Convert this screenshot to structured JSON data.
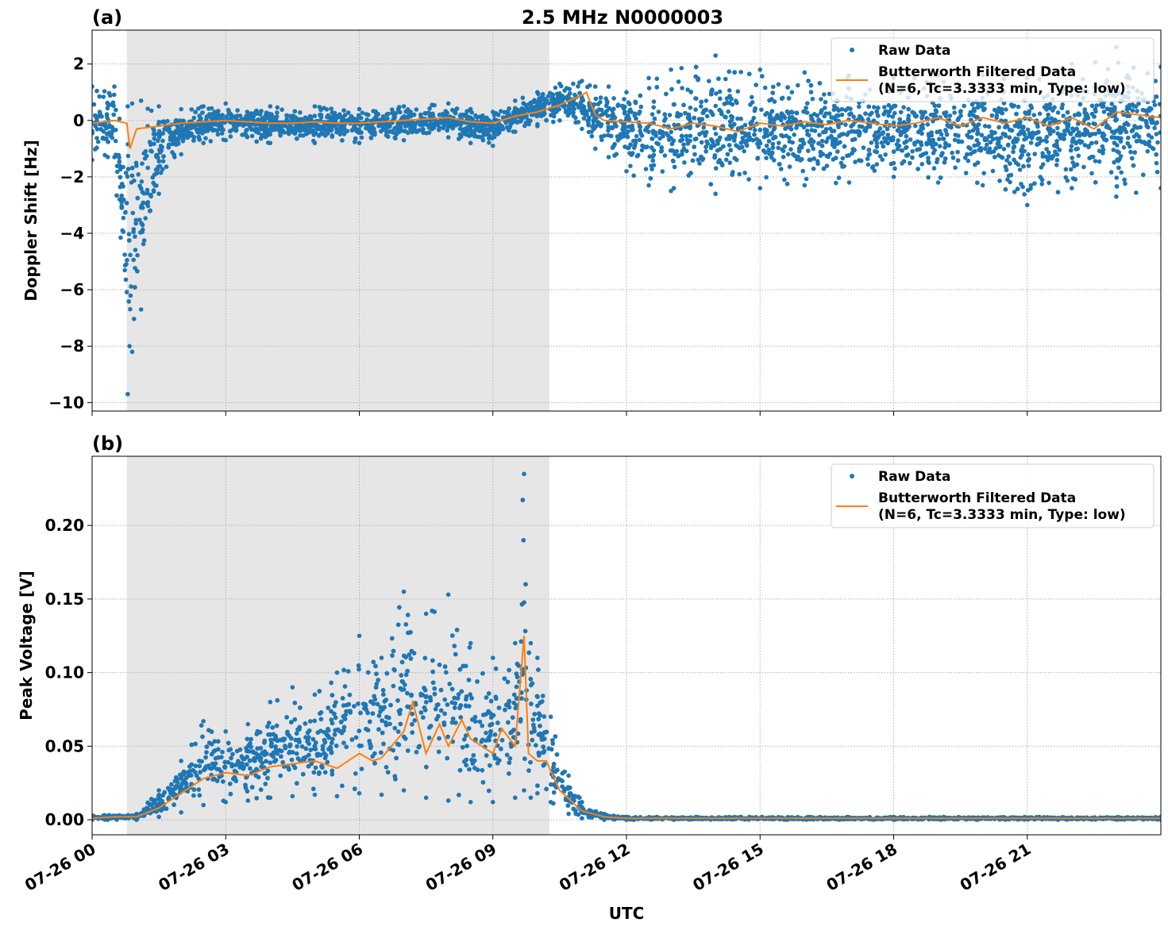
{
  "figure_title": "2.5 MHz N0000003",
  "chart_data": [
    {
      "type": "scatter+line",
      "panel_label": "(a)",
      "ylabel": "Doppler Shift [Hz]",
      "xlabel": "",
      "xlim_hours_utc": [
        0,
        24
      ],
      "ylim": [
        -10.3,
        3.2
      ],
      "yticks": [
        2,
        0,
        -2,
        -4,
        -6,
        -8,
        -10
      ],
      "ytick_labels": [
        "2",
        "0",
        "−2",
        "−4",
        "−6",
        "−8",
        "−10"
      ],
      "grid": true,
      "legend_position": "upper-right",
      "shaded_interval_hours": [
        0.78,
        10.27
      ],
      "series": [
        {
          "name": "Raw Data",
          "kind": "scatter",
          "color": "#1f77b4",
          "envelope": {
            "x": [
              0,
              0.5,
              0.8,
              0.9,
              1.1,
              1.5,
              2,
              2.5,
              3,
              4,
              5,
              6,
              7,
              8,
              8.5,
              9,
              9.5,
              10,
              10.5,
              11,
              11.3,
              11.6,
              12,
              12.5,
              13,
              14,
              15,
              16,
              17,
              18,
              19,
              20,
              21,
              22,
              23,
              24
            ],
            "min": [
              -1.4,
              -1.3,
              -9.7,
              -8.2,
              -6.7,
              -2.6,
              -1.2,
              -0.8,
              -0.7,
              -0.8,
              -0.8,
              -0.8,
              -0.7,
              -0.6,
              -0.8,
              -0.9,
              -0.4,
              -0.2,
              0,
              -0.3,
              -1.0,
              -1.3,
              -1.8,
              -2.3,
              -2.5,
              -2.6,
              -2.4,
              -2.3,
              -2.2,
              -2.0,
              -2.2,
              -2.3,
              -3.0,
              -2.4,
              -2.7,
              -2.4
            ],
            "max": [
              1.2,
              1.2,
              0.5,
              0.6,
              0.7,
              0.5,
              0.4,
              0.5,
              0.6,
              0.5,
              0.5,
              0.4,
              0.5,
              0.6,
              0.4,
              0.3,
              0.7,
              1.0,
              1.3,
              1.4,
              1.2,
              1.2,
              1.0,
              1.5,
              1.8,
              2.3,
              1.8,
              1.7,
              1.6,
              1.5,
              1.6,
              1.6,
              1.5,
              2.0,
              2.6,
              1.9
            ]
          }
        },
        {
          "name": "Butterworth Filtered Data\n(N=6, Tc=3.3333 min, Type: low)",
          "kind": "line",
          "color": "#ff7f0e",
          "x": [
            0,
            0.5,
            0.78,
            0.85,
            1,
            1.5,
            2,
            2.5,
            3,
            3.5,
            4,
            4.5,
            5,
            5.5,
            6,
            6.5,
            7,
            7.5,
            8,
            8.5,
            9,
            9.5,
            10,
            10.5,
            11,
            11.1,
            11.3,
            11.5,
            12,
            12.5,
            13,
            13.5,
            14,
            14.5,
            15,
            15.5,
            16,
            16.5,
            17,
            17.5,
            18,
            18.5,
            19,
            19.5,
            20,
            20.5,
            21,
            21.5,
            22,
            22.5,
            23,
            23.5,
            24
          ],
          "y": [
            -0.1,
            0,
            -0.1,
            -1.0,
            -0.3,
            -0.2,
            -0.1,
            -0.05,
            0,
            -0.05,
            -0.1,
            -0.1,
            -0.05,
            -0.1,
            -0.1,
            -0.05,
            0,
            0.05,
            0.1,
            -0.05,
            -0.1,
            0.15,
            0.3,
            0.55,
            0.9,
            1.0,
            0.2,
            0,
            -0.05,
            -0.1,
            -0.3,
            -0.1,
            -0.2,
            -0.4,
            -0.1,
            -0.2,
            -0.05,
            -0.15,
            0,
            -0.1,
            -0.2,
            -0.1,
            0.1,
            -0.2,
            0.1,
            -0.1,
            0.1,
            -0.2,
            0.1,
            -0.3,
            0.3,
            0.2,
            0.1
          ]
        }
      ]
    },
    {
      "type": "scatter+line",
      "panel_label": "(b)",
      "ylabel": "Peak Voltage [V]",
      "xlabel": "UTC",
      "xlim_hours_utc": [
        0,
        24
      ],
      "xticks": [
        0,
        3,
        6,
        9,
        12,
        15,
        18,
        21
      ],
      "xtick_labels": [
        "07-26 00",
        "07-26 03",
        "07-26 06",
        "07-26 09",
        "07-26 12",
        "07-26 15",
        "07-26 18",
        "07-26 21"
      ],
      "ylim": [
        -0.0102,
        0.247
      ],
      "yticks": [
        0,
        0.05,
        0.1,
        0.15,
        0.2
      ],
      "ytick_labels": [
        "0.00",
        "0.05",
        "0.10",
        "0.15",
        "0.20"
      ],
      "grid": true,
      "legend_position": "upper-right",
      "shaded_interval_hours": [
        0.78,
        10.27
      ],
      "series": [
        {
          "name": "Raw Data",
          "kind": "scatter",
          "color": "#1f77b4",
          "envelope": {
            "x": [
              0,
              1,
              1.5,
              2,
              2.5,
              3,
              3.5,
              4,
              4.5,
              5,
              5.5,
              6,
              6.5,
              7,
              7.5,
              8,
              8.5,
              9,
              9.5,
              9.7,
              9.85,
              10,
              10.3,
              10.7,
              11,
              11.5,
              12,
              18,
              24
            ],
            "min": [
              0,
              0,
              0.002,
              0.005,
              0.01,
              0.012,
              0.013,
              0.015,
              0.016,
              0.017,
              0.016,
              0.018,
              0.017,
              0.02,
              0.015,
              0.013,
              0.012,
              0.012,
              0.015,
              0.02,
              0.015,
              0.018,
              0.012,
              0.004,
              0.001,
              0,
              0,
              0,
              0
            ],
            "max": [
              0.003,
              0.004,
              0.02,
              0.04,
              0.067,
              0.06,
              0.065,
              0.08,
              0.09,
              0.085,
              0.1,
              0.125,
              0.11,
              0.155,
              0.14,
              0.153,
              0.12,
              0.11,
              0.12,
              0.235,
              0.12,
              0.11,
              0.07,
              0.03,
              0.012,
              0.004,
              0.002,
              0.002,
              0.002
            ]
          }
        },
        {
          "name": "Butterworth Filtered Data\n(N=6, Tc=3.3333 min, Type: low)",
          "kind": "line",
          "color": "#ff7f0e",
          "x": [
            0,
            0.5,
            1,
            1.5,
            2,
            2.5,
            3,
            3.5,
            4,
            4.5,
            5,
            5.5,
            6,
            6.3,
            6.5,
            7,
            7.2,
            7.5,
            7.8,
            8,
            8.3,
            8.5,
            9,
            9.2,
            9.5,
            9.7,
            9.8,
            10,
            10.2,
            10.5,
            11,
            11.5,
            12,
            18,
            24
          ],
          "y": [
            0.001,
            0.002,
            0.002,
            0.008,
            0.018,
            0.028,
            0.032,
            0.03,
            0.036,
            0.038,
            0.04,
            0.035,
            0.045,
            0.04,
            0.042,
            0.06,
            0.08,
            0.045,
            0.065,
            0.05,
            0.068,
            0.055,
            0.045,
            0.062,
            0.05,
            0.125,
            0.045,
            0.04,
            0.04,
            0.02,
            0.006,
            0.002,
            0.001,
            0.001,
            0.001
          ]
        }
      ]
    }
  ]
}
